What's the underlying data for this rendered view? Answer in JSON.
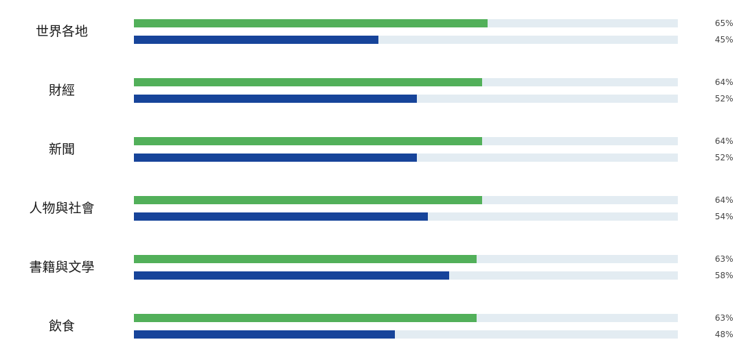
{
  "chart_data": {
    "type": "bar",
    "orientation": "horizontal",
    "categories": [
      "世界各地",
      "財經",
      "新聞",
      "人物與社會",
      "書籍與文學",
      "飲食"
    ],
    "series": [
      {
        "values": [
          65,
          64,
          64,
          64,
          63,
          63
        ],
        "color": "#52b05a"
      },
      {
        "values": [
          45,
          52,
          52,
          54,
          58,
          48
        ],
        "color": "#17449a"
      }
    ],
    "value_labels": [
      [
        "65%",
        "45%"
      ],
      [
        "64%",
        "52%"
      ],
      [
        "64%",
        "52%"
      ],
      [
        "64%",
        "54%"
      ],
      [
        "63%",
        "58%"
      ],
      [
        "63%",
        "48%"
      ]
    ],
    "xlim": [
      0,
      100
    ],
    "track_color": "#e3ecf2",
    "legend": "none",
    "grid": false
  }
}
